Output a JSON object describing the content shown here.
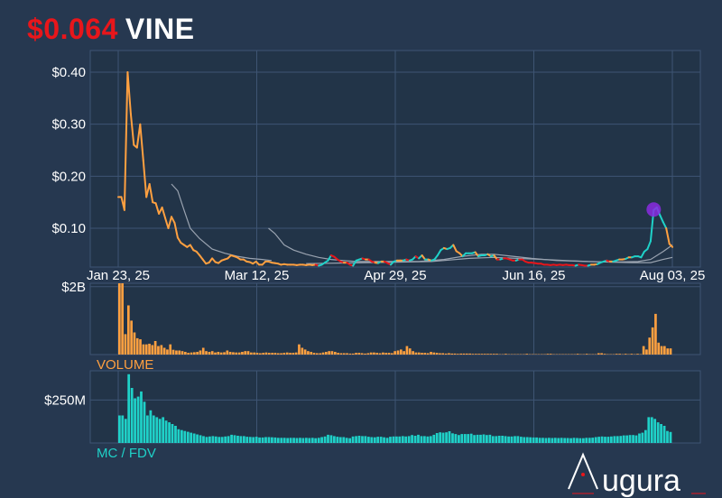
{
  "header": {
    "price": "$0.064",
    "ticker": "VINE"
  },
  "colors": {
    "background": "#263850",
    "panel": "#223448",
    "grid": "#3e5573",
    "price_up": "#1fd1c8",
    "price_down": "#e8161b",
    "price_flat": "#ffa040",
    "volume": "#ffa040",
    "mcap": "#1fd1c8",
    "ma": "#9aa3b0",
    "marker": "#8a2be2"
  },
  "chart_data": [
    {
      "type": "line",
      "ylim": [
        0.025,
        0.44
      ],
      "y_ticks": [
        "$0.10",
        "$0.20",
        "$0.30",
        "$0.40"
      ],
      "y_tick_values": [
        0.1,
        0.2,
        0.3,
        0.4
      ],
      "x_ticks": [
        "Jan 23, 25",
        "Mar 12, 25",
        "Apr 29, 25",
        "Jun 16, 25",
        "Aug 03, 25"
      ],
      "x_tick_days": [
        0,
        48,
        96,
        144,
        192
      ],
      "price_series": [
        [
          0,
          0.16
        ],
        [
          1,
          0.16
        ],
        [
          2,
          0.135
        ],
        [
          3,
          0.4
        ],
        [
          4,
          0.32
        ],
        [
          5,
          0.26
        ],
        [
          6,
          0.255
        ],
        [
          7,
          0.3
        ],
        [
          8,
          0.23
        ],
        [
          9,
          0.16
        ],
        [
          10,
          0.185
        ],
        [
          11,
          0.15
        ],
        [
          12,
          0.148
        ],
        [
          13,
          0.128
        ],
        [
          14,
          0.14
        ],
        [
          15,
          0.12
        ],
        [
          16,
          0.1
        ],
        [
          17,
          0.122
        ],
        [
          18,
          0.11
        ],
        [
          19,
          0.082
        ],
        [
          20,
          0.072
        ],
        [
          21,
          0.068
        ],
        [
          22,
          0.064
        ],
        [
          23,
          0.068
        ],
        [
          24,
          0.058
        ],
        [
          25,
          0.055
        ],
        [
          26,
          0.048
        ],
        [
          27,
          0.04
        ],
        [
          28,
          0.032
        ],
        [
          29,
          0.034
        ],
        [
          30,
          0.042
        ],
        [
          31,
          0.035
        ],
        [
          32,
          0.033
        ],
        [
          33,
          0.038
        ],
        [
          34,
          0.04
        ],
        [
          35,
          0.042
        ],
        [
          36,
          0.048
        ],
        [
          37,
          0.046
        ],
        [
          38,
          0.044
        ],
        [
          39,
          0.04
        ],
        [
          40,
          0.04
        ],
        [
          41,
          0.036
        ],
        [
          42,
          0.035
        ],
        [
          43,
          0.032
        ],
        [
          44,
          0.036
        ],
        [
          45,
          0.03
        ],
        [
          46,
          0.03
        ],
        [
          47,
          0.036
        ],
        [
          48,
          0.036
        ],
        [
          49,
          0.034
        ],
        [
          50,
          0.033
        ],
        [
          51,
          0.032
        ],
        [
          52,
          0.03
        ],
        [
          53,
          0.031
        ],
        [
          54,
          0.03
        ],
        [
          55,
          0.03
        ],
        [
          56,
          0.03
        ],
        [
          57,
          0.029
        ],
        [
          58,
          0.03
        ],
        [
          59,
          0.03
        ],
        [
          60,
          0.029
        ],
        [
          61,
          0.03
        ],
        [
          62,
          0.029
        ],
        [
          63,
          0.03
        ],
        [
          64,
          0.028
        ],
        [
          65,
          0.03
        ],
        [
          66,
          0.034
        ],
        [
          67,
          0.038
        ],
        [
          68,
          0.048
        ],
        [
          69,
          0.045
        ],
        [
          70,
          0.04
        ],
        [
          71,
          0.036
        ],
        [
          72,
          0.034
        ],
        [
          73,
          0.034
        ],
        [
          74,
          0.03
        ],
        [
          75,
          0.028
        ],
        [
          76,
          0.038
        ],
        [
          77,
          0.04
        ],
        [
          78,
          0.042
        ],
        [
          79,
          0.04
        ],
        [
          80,
          0.04
        ],
        [
          81,
          0.036
        ],
        [
          82,
          0.034
        ],
        [
          83,
          0.033
        ],
        [
          84,
          0.036
        ],
        [
          85,
          0.036
        ],
        [
          86,
          0.033
        ],
        [
          87,
          0.03
        ],
        [
          88,
          0.036
        ],
        [
          89,
          0.038
        ],
        [
          90,
          0.038
        ],
        [
          91,
          0.038
        ],
        [
          92,
          0.04
        ],
        [
          93,
          0.038
        ],
        [
          94,
          0.04
        ],
        [
          95,
          0.046
        ],
        [
          96,
          0.042
        ],
        [
          97,
          0.048
        ],
        [
          98,
          0.04
        ],
        [
          99,
          0.04
        ],
        [
          100,
          0.038
        ],
        [
          101,
          0.04
        ],
        [
          102,
          0.048
        ],
        [
          103,
          0.058
        ],
        [
          104,
          0.062
        ],
        [
          105,
          0.06
        ],
        [
          106,
          0.062
        ],
        [
          107,
          0.068
        ],
        [
          108,
          0.056
        ],
        [
          109,
          0.052
        ],
        [
          110,
          0.046
        ],
        [
          111,
          0.052
        ],
        [
          112,
          0.052
        ],
        [
          113,
          0.052
        ],
        [
          114,
          0.054
        ],
        [
          115,
          0.046
        ],
        [
          116,
          0.048
        ],
        [
          117,
          0.048
        ],
        [
          118,
          0.05
        ],
        [
          119,
          0.046
        ],
        [
          120,
          0.048
        ],
        [
          121,
          0.04
        ],
        [
          122,
          0.04
        ],
        [
          123,
          0.042
        ],
        [
          124,
          0.042
        ],
        [
          125,
          0.04
        ],
        [
          126,
          0.038
        ],
        [
          127,
          0.038
        ],
        [
          128,
          0.04
        ],
        [
          129,
          0.04
        ],
        [
          130,
          0.036
        ],
        [
          131,
          0.034
        ],
        [
          132,
          0.034
        ],
        [
          133,
          0.033
        ],
        [
          134,
          0.032
        ],
        [
          135,
          0.032
        ],
        [
          136,
          0.03
        ],
        [
          137,
          0.03
        ],
        [
          138,
          0.029
        ],
        [
          139,
          0.03
        ],
        [
          140,
          0.029
        ],
        [
          141,
          0.03
        ],
        [
          142,
          0.029
        ],
        [
          143,
          0.03
        ],
        [
          144,
          0.029
        ],
        [
          145,
          0.029
        ],
        [
          146,
          0.028
        ],
        [
          147,
          0.03
        ],
        [
          148,
          0.029
        ],
        [
          149,
          0.028
        ],
        [
          150,
          0.028
        ],
        [
          151,
          0.03
        ],
        [
          152,
          0.03
        ],
        [
          153,
          0.031
        ],
        [
          154,
          0.034
        ],
        [
          155,
          0.036
        ],
        [
          156,
          0.038
        ],
        [
          157,
          0.036
        ],
        [
          158,
          0.036
        ],
        [
          159,
          0.038
        ],
        [
          160,
          0.04
        ],
        [
          161,
          0.04
        ],
        [
          162,
          0.041
        ],
        [
          163,
          0.044
        ],
        [
          164,
          0.044
        ],
        [
          165,
          0.046
        ],
        [
          166,
          0.046
        ],
        [
          167,
          0.044
        ],
        [
          168,
          0.055
        ],
        [
          169,
          0.06
        ],
        [
          170,
          0.075
        ],
        [
          171,
          0.135
        ],
        [
          172,
          0.14
        ],
        [
          173,
          0.125
        ],
        [
          174,
          0.112
        ],
        [
          175,
          0.1
        ],
        [
          176,
          0.07
        ],
        [
          177,
          0.064
        ]
      ],
      "moving_averages": [
        {
          "points": [
            [
              17,
              0.185
            ],
            [
              19,
              0.172
            ],
            [
              21,
              0.135
            ],
            [
              23,
              0.1
            ],
            [
              26,
              0.08
            ],
            [
              30,
              0.06
            ],
            [
              34,
              0.052
            ],
            [
              38,
              0.046
            ],
            [
              42,
              0.042
            ],
            [
              46,
              0.04
            ],
            [
              49,
              0.038
            ]
          ]
        },
        {
          "points": [
            [
              48,
              0.1
            ],
            [
              50,
              0.09
            ],
            [
              53,
              0.068
            ],
            [
              56,
              0.058
            ],
            [
              60,
              0.05
            ],
            [
              64,
              0.044
            ],
            [
              68,
              0.04
            ],
            [
              72,
              0.038
            ],
            [
              76,
              0.036
            ],
            [
              80,
              0.036
            ],
            [
              88,
              0.036
            ],
            [
              96,
              0.036
            ],
            [
              104,
              0.04
            ],
            [
              110,
              0.046
            ],
            [
              116,
              0.05
            ],
            [
              120,
              0.05
            ],
            [
              126,
              0.046
            ],
            [
              132,
              0.042
            ],
            [
              140,
              0.038
            ],
            [
              150,
              0.036
            ],
            [
              158,
              0.035
            ],
            [
              166,
              0.036
            ],
            [
              170,
              0.04
            ],
            [
              174,
              0.055
            ],
            [
              177,
              0.068
            ]
          ]
        },
        {
          "points": [
            [
              60,
              0.032
            ],
            [
              80,
              0.034
            ],
            [
              100,
              0.036
            ],
            [
              112,
              0.042
            ],
            [
              120,
              0.044
            ],
            [
              136,
              0.04
            ],
            [
              150,
              0.036
            ],
            [
              164,
              0.034
            ],
            [
              170,
              0.034
            ],
            [
              174,
              0.04
            ],
            [
              177,
              0.044
            ]
          ]
        }
      ],
      "marker": {
        "day": 171,
        "value": 0.136
      }
    },
    {
      "type": "bar",
      "ylabel": "VOLUME",
      "y_ticks": [
        "$2B"
      ],
      "y_tick_values": [
        2.0
      ],
      "ylim": [
        0,
        2.1
      ],
      "values": [
        2.1,
        2.1,
        0.6,
        1.45,
        1.0,
        0.65,
        0.48,
        0.45,
        0.3,
        0.3,
        0.32,
        0.28,
        0.4,
        0.25,
        0.28,
        0.2,
        0.15,
        0.3,
        0.14,
        0.12,
        0.12,
        0.1,
        0.08,
        0.05,
        0.06,
        0.07,
        0.08,
        0.12,
        0.2,
        0.1,
        0.08,
        0.1,
        0.06,
        0.08,
        0.06,
        0.07,
        0.12,
        0.08,
        0.07,
        0.06,
        0.06,
        0.08,
        0.1,
        0.1,
        0.06,
        0.06,
        0.05,
        0.04,
        0.05,
        0.06,
        0.05,
        0.05,
        0.05,
        0.04,
        0.04,
        0.05,
        0.06,
        0.05,
        0.05,
        0.06,
        0.3,
        0.2,
        0.15,
        0.1,
        0.08,
        0.05,
        0.04,
        0.04,
        0.06,
        0.08,
        0.1,
        0.1,
        0.08,
        0.05,
        0.04,
        0.04,
        0.04,
        0.03,
        0.03,
        0.05,
        0.05,
        0.04,
        0.03,
        0.04,
        0.06,
        0.06,
        0.05,
        0.04,
        0.06,
        0.05,
        0.05,
        0.04,
        0.1,
        0.12,
        0.15,
        0.1,
        0.25,
        0.18,
        0.1,
        0.06,
        0.06,
        0.05,
        0.05,
        0.04,
        0.08,
        0.06,
        0.05,
        0.04,
        0.04,
        0.03,
        0.04,
        0.03,
        0.03,
        0.02,
        0.03,
        0.03,
        0.03,
        0.03,
        0.02,
        0.02,
        0.02,
        0.02,
        0.02,
        0.02,
        0.02,
        0.02,
        0.02,
        0.01,
        0.01,
        0.02,
        0.01,
        0.01,
        0.01,
        0.01,
        0.01,
        0.01,
        0.02,
        0.01,
        0.01,
        0.01,
        0.01,
        0.01,
        0.01,
        0.02,
        0.02,
        0.01,
        0.01,
        0.01,
        0.01,
        0.01,
        0.01,
        0.01,
        0.01,
        0.02,
        0.01,
        0.01,
        0.02,
        0.01,
        0.01,
        0.01,
        0.04,
        0.04,
        0.02,
        0.01,
        0.01,
        0.01,
        0.02,
        0.02,
        0.01,
        0.02,
        0.01,
        0.02,
        0.01,
        0.02,
        0.01,
        0.25,
        0.15,
        0.5,
        0.8,
        1.2,
        0.35,
        0.25,
        0.25,
        0.18,
        0.18
      ]
    },
    {
      "type": "bar",
      "ylabel": "MC / FDV",
      "y_ticks": [
        "$250M"
      ],
      "y_tick_values": [
        250
      ],
      "ylim": [
        0,
        420
      ],
      "values": [
        160,
        160,
        140,
        400,
        320,
        260,
        270,
        300,
        240,
        160,
        190,
        160,
        150,
        140,
        150,
        130,
        120,
        110,
        100,
        80,
        75,
        70,
        65,
        60,
        55,
        50,
        45,
        40,
        35,
        38,
        40,
        38,
        35,
        35,
        38,
        40,
        48,
        45,
        42,
        40,
        40,
        36,
        35,
        34,
        36,
        32,
        32,
        34,
        34,
        33,
        32,
        30,
        30,
        30,
        29,
        30,
        30,
        29,
        30,
        29,
        30,
        29,
        30,
        28,
        30,
        34,
        38,
        48,
        45,
        40,
        36,
        34,
        34,
        30,
        28,
        38,
        40,
        42,
        40,
        40,
        36,
        34,
        33,
        36,
        36,
        33,
        30,
        36,
        38,
        38,
        38,
        40,
        38,
        40,
        46,
        42,
        48,
        40,
        40,
        38,
        40,
        48,
        58,
        62,
        60,
        62,
        68,
        56,
        52,
        46,
        52,
        52,
        52,
        54,
        46,
        48,
        48,
        50,
        46,
        48,
        40,
        40,
        42,
        42,
        40,
        38,
        38,
        40,
        40,
        36,
        34,
        34,
        33,
        32,
        32,
        30,
        30,
        29,
        30,
        29,
        30,
        29,
        30,
        29,
        29,
        28,
        30,
        29,
        28,
        28,
        30,
        30,
        31,
        34,
        36,
        38,
        36,
        36,
        38,
        40,
        40,
        41,
        44,
        44,
        46,
        46,
        44,
        55,
        60,
        75,
        150,
        150,
        140,
        120,
        110,
        100,
        70,
        64
      ]
    }
  ]
}
